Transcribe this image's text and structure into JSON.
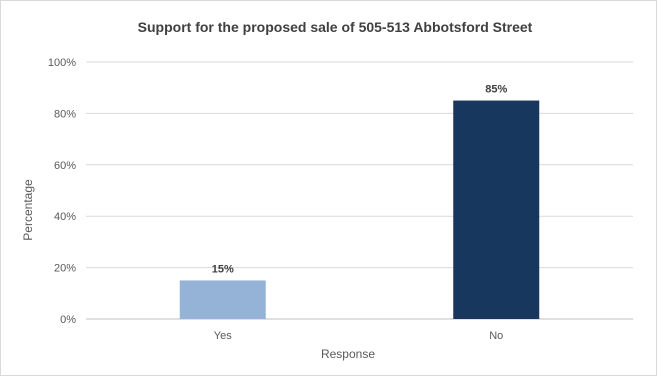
{
  "chart_data": {
    "type": "bar",
    "title": "Support for the proposed sale of 505-513 Abbotsford Street",
    "xlabel": "Response",
    "ylabel": "Percentage",
    "categories": [
      "Yes",
      "No"
    ],
    "values": [
      15,
      85
    ],
    "data_labels": [
      "15%",
      "85%"
    ],
    "colors": [
      "#95b3d7",
      "#17375e"
    ],
    "ylim": [
      0,
      100
    ],
    "yticks": [
      "0%",
      "20%",
      "40%",
      "60%",
      "80%",
      "100%"
    ],
    "grid": true,
    "legend": "none"
  }
}
